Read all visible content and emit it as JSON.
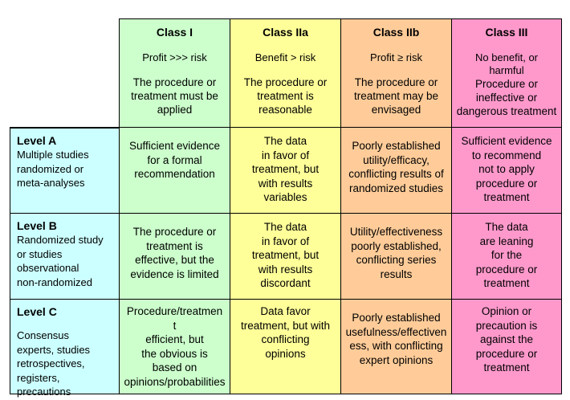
{
  "classes": [
    {
      "title": "Class I",
      "subtitle": "Profit >>> risk",
      "description": "The procedure or\ntreatment must be\napplied",
      "color": "#ccffcc"
    },
    {
      "title": "Class IIa",
      "subtitle": "Benefit > risk",
      "description": "The procedure or\ntreatment is\nreasonable",
      "color": "#ffff99"
    },
    {
      "title": "Class IIb",
      "subtitle": "Profit ≥ risk",
      "description": "The procedure or\ntreatment may be\nenvisaged",
      "color": "#ffcc99"
    },
    {
      "title": "Class III",
      "subtitle": "No benefit, or\nharmful",
      "description": "Procedure or\nineffective or\ndangerous treatment",
      "color": "#ff99cc"
    }
  ],
  "levels": [
    {
      "title": "Level A",
      "description": "Multiple studies\nrandomized or\nmeta-analyses",
      "cells": [
        "Sufficient evidence\nfor a formal\nrecommendation",
        "The data\nin favor of\ntreatment, but\nwith results\nvariables",
        "Poorly established\nutility/efficacy,\nconflicting results of\nrandomized studies",
        "Sufficient evidence\nto recommend\nnot to apply\nprocedure or\ntreatment"
      ]
    },
    {
      "title": "Level B",
      "description": "Randomized study\nor studies\nobservational\nnon-randomized",
      "cells": [
        "The procedure or\ntreatment is\neffective, but the\nevidence is limited",
        "The data\nin favor of\ntreatment, but\nwith results\ndiscordant",
        "Utility/effectiveness\npoorly established,\nconflicting series\nresults",
        "The data\nare leaning\nfor the\nprocedure or\ntreatment"
      ]
    },
    {
      "title": "Level C",
      "description": "Consensus\nexperts, studies\nretrospectives,\nregisters, precautions",
      "cells": [
        "Procedure/treatmen\nt\nefficient, but\nthe obvious is\nbased on\nopinions/probabilities",
        "Data favor\ntreatment, but with\nconflicting\nopinions",
        "Poorly established\nusefulness/effectiven\ness, with conflicting\nexpert opinions",
        "Opinion or\nprecaution is\nagainst the\nprocedure or\ntreatment"
      ]
    }
  ],
  "row_header_color": "#ccffff"
}
